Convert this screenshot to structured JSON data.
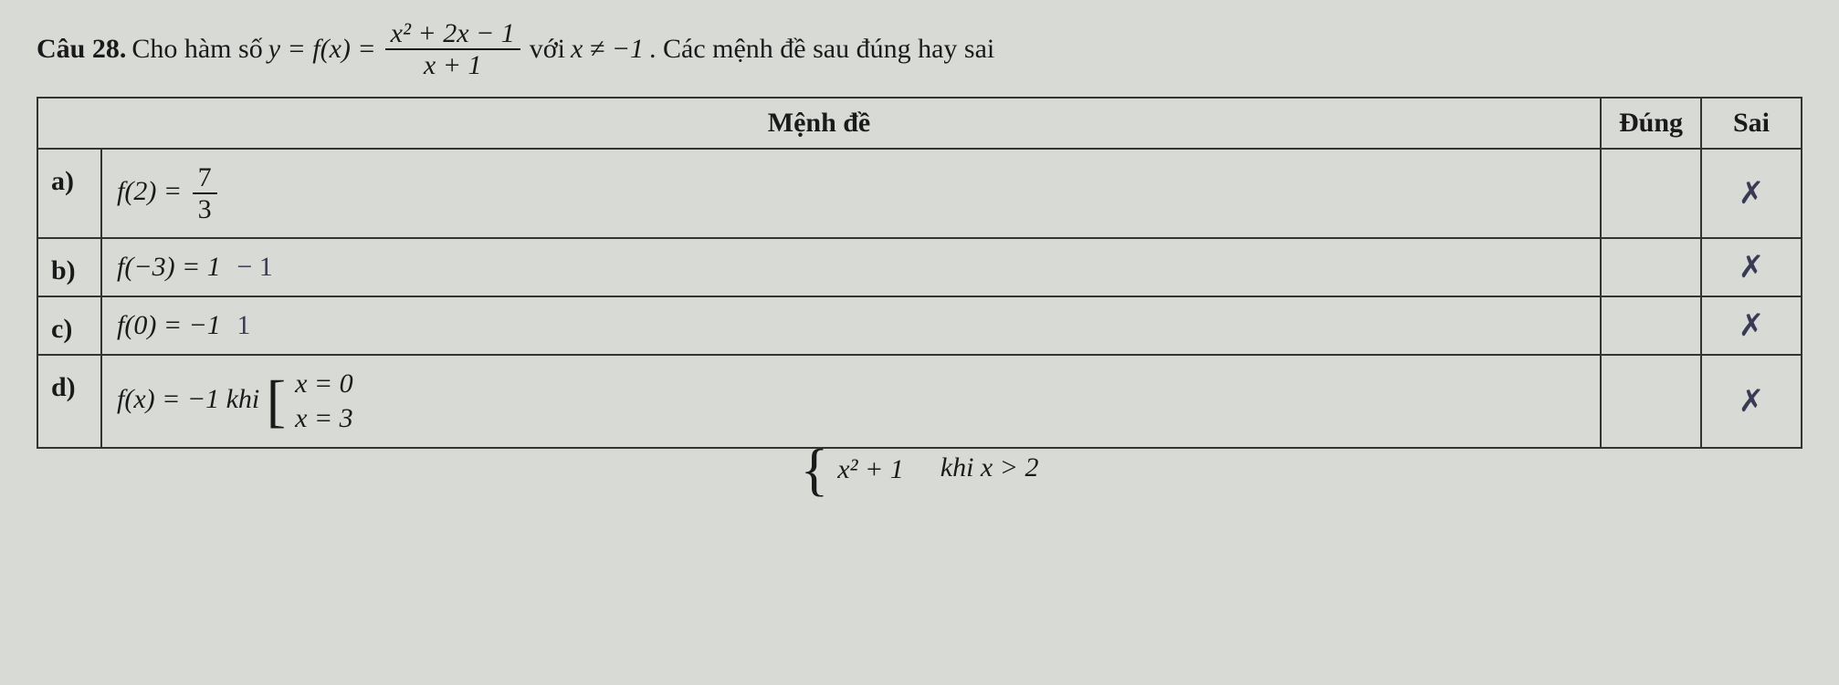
{
  "question": {
    "label": "Câu 28.",
    "pre_text": "Cho hàm số",
    "func_def_lhs": "y = f(x) =",
    "fraction_num": "x² + 2x − 1",
    "fraction_den": "x + 1",
    "with_text": "với",
    "condition": "x ≠ −1",
    "post_text": ". Các mệnh đề sau đúng hay sai"
  },
  "table": {
    "header_menh": "Mệnh đề",
    "header_dung": "Đúng",
    "header_sai": "Sai",
    "rows": [
      {
        "label": "a)",
        "content_lhs": "f(2) =",
        "frac_num": "7",
        "frac_den": "3",
        "sai_mark": "✗"
      },
      {
        "label": "b)",
        "content": "f(−3) = 1",
        "handwritten": "− 1",
        "sai_mark": "✗"
      },
      {
        "label": "c)",
        "content": "f(0) = −1",
        "handwritten": "1",
        "sai_mark": "✗"
      },
      {
        "label": "d)",
        "content_pre": "f(x) = −1 khi",
        "brace_top": "x = 0",
        "brace_bot": "x = 3",
        "sai_mark": "✗"
      }
    ]
  },
  "bottom_fragment": {
    "brace_top": "x² + 1",
    "khi": "khi x > 2"
  },
  "colors": {
    "background": "#d8dad6",
    "text": "#1a1a1a",
    "border": "#333333",
    "handwriting": "#3a3a55"
  }
}
